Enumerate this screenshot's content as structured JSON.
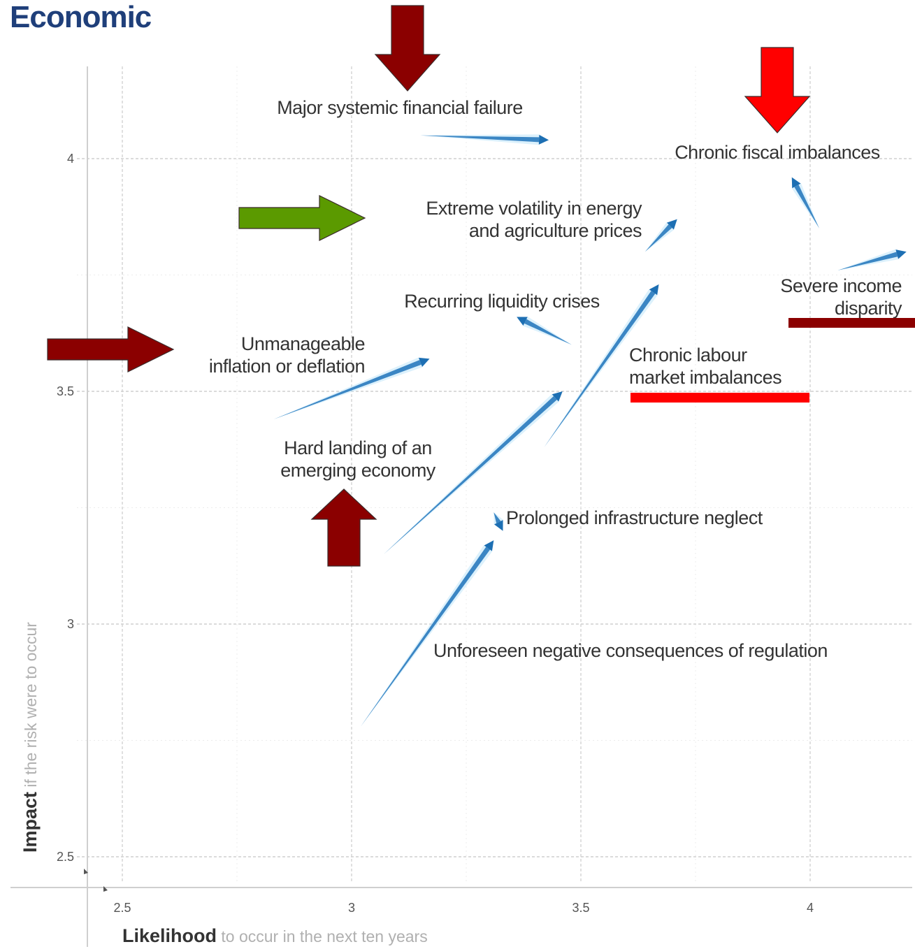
{
  "title": "Economic",
  "chart_data": {
    "type": "scatter",
    "title": "Economic",
    "xlabel_bold": "Likelihood",
    "xlabel_rest": " to occur in the next ten years",
    "ylabel_bold": "Impact",
    "ylabel_rest": " if the risk were to occur",
    "xlim": [
      2.48,
      4.2
    ],
    "ylim": [
      2.45,
      4.2
    ],
    "x_ticks": [
      "2.5",
      "3",
      "3.5",
      "4"
    ],
    "y_ticks": [
      "2.5",
      "3",
      "3.5",
      "4"
    ],
    "grid": true,
    "risks": [
      {
        "label": [
          "Major systemic financial failure"
        ],
        "from": [
          3.15,
          4.05
        ],
        "to": [
          3.43,
          4.04
        ]
      },
      {
        "label": [
          "Chronic fiscal imbalances"
        ],
        "from": [
          4.02,
          3.85
        ],
        "to": [
          3.96,
          3.96
        ]
      },
      {
        "label": [
          "Extreme volatility in energy",
          "and agriculture prices"
        ],
        "from": [
          3.64,
          3.8
        ],
        "to": [
          3.71,
          3.87
        ]
      },
      {
        "label": [
          "Severe income",
          "disparity"
        ],
        "from": [
          4.06,
          3.76
        ],
        "to": [
          4.21,
          3.8
        ]
      },
      {
        "label": [
          "Recurring liquidity crises"
        ],
        "from": [
          3.48,
          3.6
        ],
        "to": [
          3.36,
          3.66
        ]
      },
      {
        "label": [
          "Unmanageable",
          "inflation or deflation"
        ],
        "from": [
          2.83,
          3.44
        ],
        "to": [
          3.17,
          3.57
        ]
      },
      {
        "label": [
          "Chronic labour",
          "market imbalances"
        ],
        "from": [
          3.42,
          3.38
        ],
        "to": [
          3.67,
          3.73
        ]
      },
      {
        "label": [
          "Hard landing of an",
          "emerging economy"
        ],
        "from": [
          3.07,
          3.15
        ],
        "to": [
          3.46,
          3.5
        ]
      },
      {
        "label": [
          "Prolonged infrastructure neglect"
        ],
        "from": [
          3.31,
          3.24
        ],
        "to": [
          3.33,
          3.2
        ]
      },
      {
        "label": [
          "Unforeseen negative consequences of regulation"
        ],
        "from": [
          3.02,
          2.78
        ],
        "to": [
          3.31,
          3.18
        ]
      }
    ]
  },
  "overlays": {
    "dark_red": "#8b0000",
    "bright_red": "#ff0000",
    "green": "#5b9a00",
    "arrows": [
      {
        "target": "Major systemic financial failure",
        "direction": "down",
        "color": "#8b0000"
      },
      {
        "target": "Chronic fiscal imbalances",
        "direction": "down",
        "color": "#ff0000"
      },
      {
        "target": "Extreme volatility in energy and agriculture prices",
        "direction": "right",
        "color": "#5b9a00"
      },
      {
        "target": "Unmanageable inflation or deflation",
        "direction": "right",
        "color": "#8b0000"
      },
      {
        "target": "Hard landing of an emerging economy",
        "direction": "up",
        "color": "#8b0000"
      }
    ],
    "underlines": [
      {
        "target": "Severe income disparity",
        "color": "#8b0000"
      },
      {
        "target": "Chronic labour market imbalances",
        "color": "#ff0000"
      }
    ]
  }
}
